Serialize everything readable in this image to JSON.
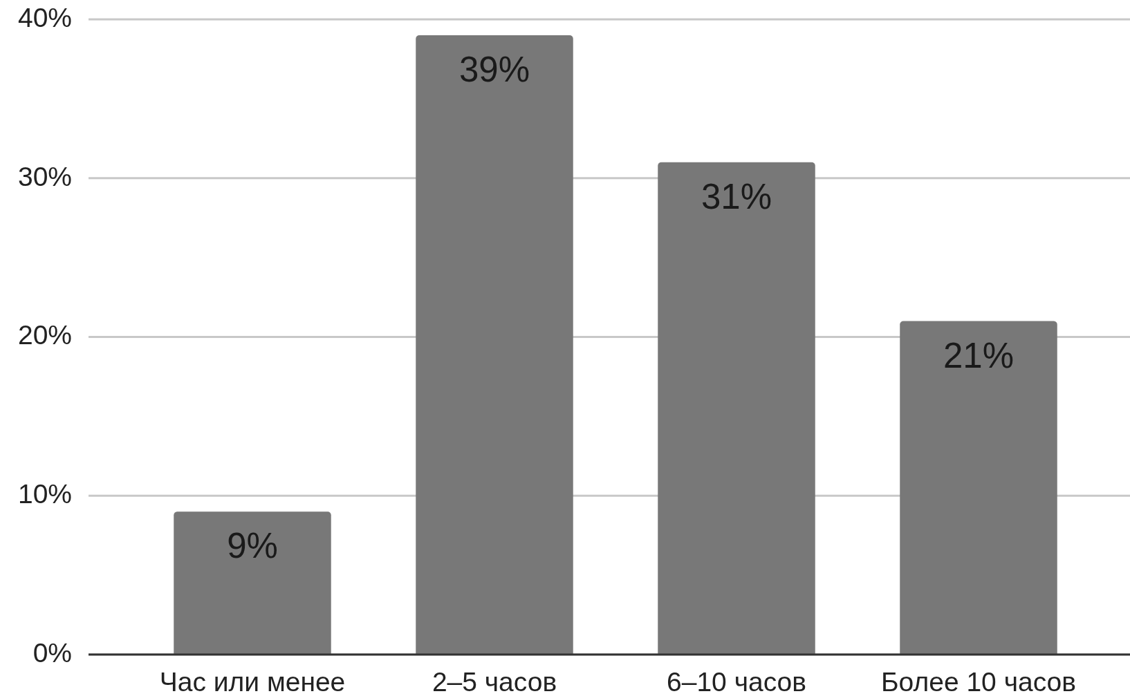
{
  "chart_data": {
    "type": "bar",
    "categories": [
      "Час или менее",
      "2–5 часов",
      "6–10 часов",
      "Более 10 часов"
    ],
    "values": [
      9,
      39,
      31,
      21
    ],
    "color": "#787878",
    "value_labels": [
      "9%",
      "39%",
      "31%",
      "21%"
    ],
    "ylim": [
      0,
      40
    ],
    "yticks": [
      {
        "value": 0,
        "label": "0%"
      },
      {
        "value": 10,
        "label": "10%"
      },
      {
        "value": 20,
        "label": "20%"
      },
      {
        "value": 30,
        "label": "30%"
      },
      {
        "value": 40,
        "label": "40%"
      }
    ],
    "grid": "y"
  }
}
